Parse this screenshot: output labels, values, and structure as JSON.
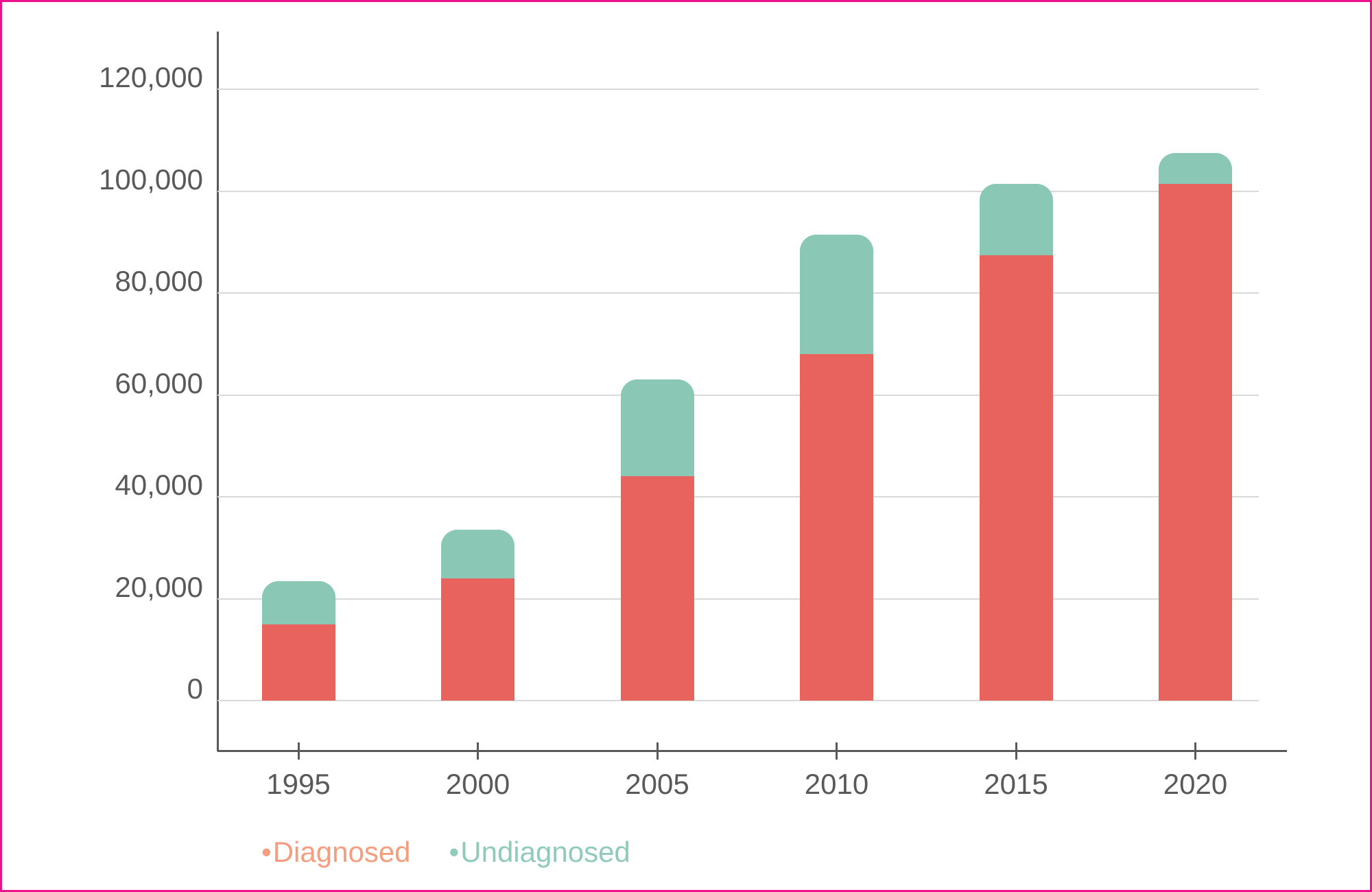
{
  "frame": {
    "border_color": "#EC128C",
    "background_color": "#FFFFFF"
  },
  "chart_data": {
    "type": "bar",
    "stacked": true,
    "title": "",
    "xlabel": "",
    "ylabel": "",
    "categories": [
      "1995",
      "2000",
      "2005",
      "2010",
      "2015",
      "2020"
    ],
    "series": [
      {
        "name": "Diagnosed",
        "color": "#E8635D",
        "values": [
          15000,
          24000,
          44000,
          68000,
          87500,
          101500
        ]
      },
      {
        "name": "Undiagnosed",
        "color": "#8AC8B5",
        "values": [
          8500,
          9500,
          19000,
          23500,
          14000,
          6000
        ]
      }
    ],
    "totals": [
      23500,
      33500,
      63000,
      91500,
      101500,
      107500
    ],
    "ylim": [
      0,
      120000
    ],
    "yticks": [
      0,
      20000,
      40000,
      60000,
      80000,
      100000,
      120000
    ],
    "ytick_labels": [
      "0",
      "20,000",
      "40,000",
      "60,000",
      "80,000",
      "100,000",
      "120,000"
    ],
    "grid": true,
    "legend_position": "bottom-left"
  },
  "legend": {
    "items": [
      {
        "bullet": "•",
        "label": "Diagnosed",
        "color": "#F59E7F"
      },
      {
        "bullet": "•",
        "label": "Undiagnosed",
        "color": "#90CBBA"
      }
    ]
  },
  "colors": {
    "axis": "#595959",
    "gridline": "#D9D9D9",
    "tick_label": "#595959",
    "bar_diagnosed": "#E8635D",
    "bar_undiagnosed": "#8AC8B5",
    "border": "#EC128C"
  }
}
